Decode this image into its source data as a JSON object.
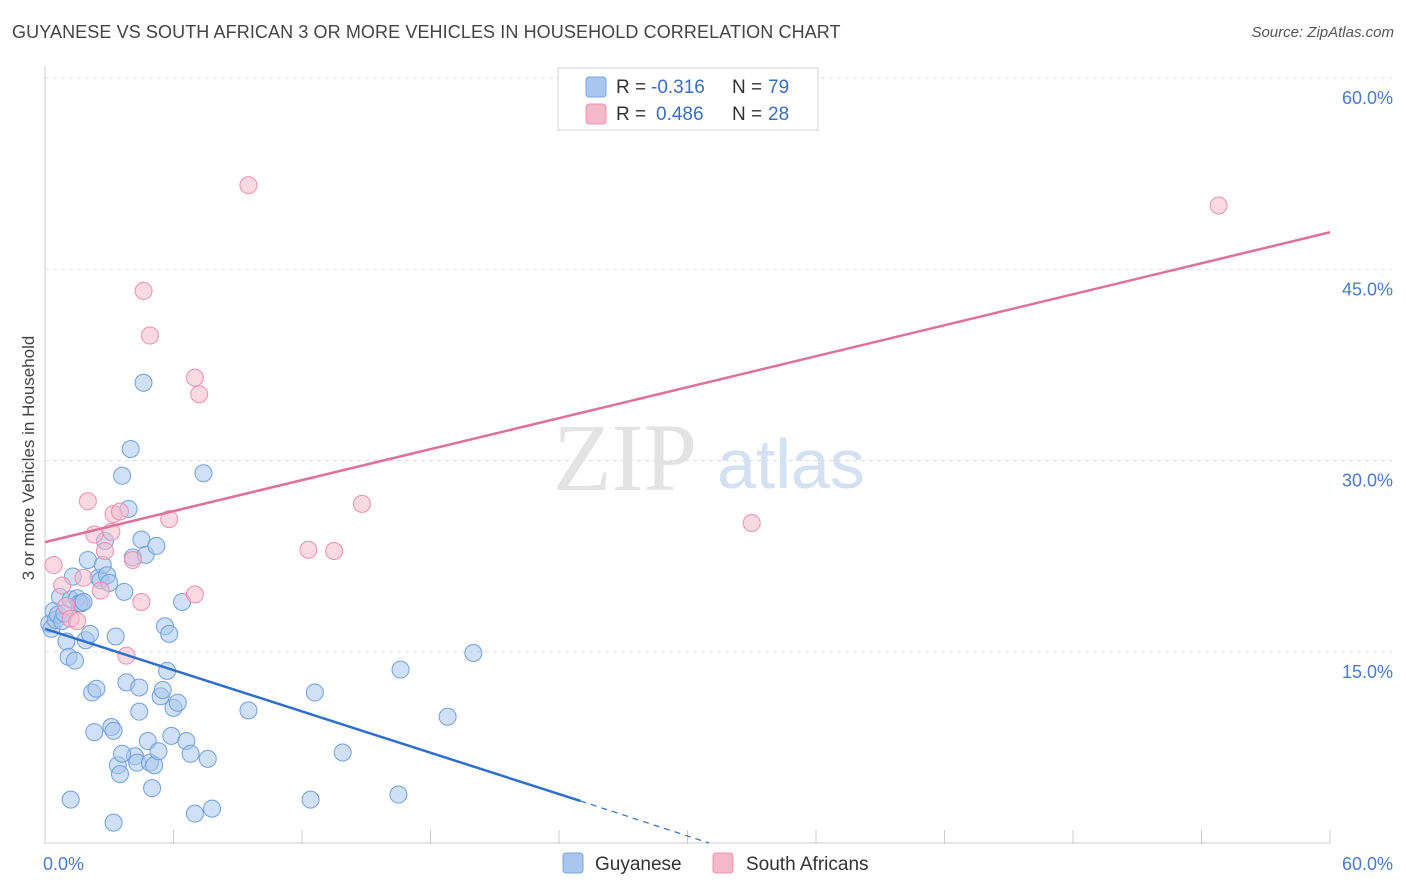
{
  "header": {
    "title": "GUYANESE VS SOUTH AFRICAN 3 OR MORE VEHICLES IN HOUSEHOLD CORRELATION CHART",
    "source": "Source: ZipAtlas.com"
  },
  "watermark": {
    "zip": "ZIP",
    "atlas": "atlas"
  },
  "legend": {
    "rows": [
      {
        "r_label": "R =",
        "r_value": "-0.316",
        "n_label": "N =",
        "n_value": "79",
        "color": "#a9c6ee"
      },
      {
        "r_label": "R =",
        "r_value": "0.486",
        "n_label": "N =",
        "n_value": "28",
        "color": "#f6b9cc"
      }
    ]
  },
  "bottom_legend": [
    {
      "label": "Guyanese",
      "color": "#a9c6ee"
    },
    {
      "label": "South Africans",
      "color": "#f6b9cc"
    }
  ],
  "chart_data": {
    "type": "scatter",
    "title": "GUYANESE VS SOUTH AFRICAN 3 OR MORE VEHICLES IN HOUSEHOLD CORRELATION CHART",
    "xlabel": "",
    "ylabel": "3 or more Vehicles in Household",
    "xlim": [
      0,
      60
    ],
    "ylim": [
      0,
      60
    ],
    "x_tick_labels": [
      "0.0%",
      "60.0%"
    ],
    "y_ticks": [
      15,
      30,
      45,
      60
    ],
    "y_tick_labels": [
      "15.0%",
      "30.0%",
      "45.0%",
      "60.0%"
    ],
    "grid": true,
    "legend_position": "top-center",
    "series": [
      {
        "name": "Guyanese",
        "color": "#6fa0e0",
        "fill": "#a9c6ee",
        "points": [
          [
            0.2,
            17.2
          ],
          [
            0.3,
            16.8
          ],
          [
            0.4,
            18.2
          ],
          [
            0.5,
            17.5
          ],
          [
            0.6,
            17.9
          ],
          [
            0.7,
            19.3
          ],
          [
            0.8,
            17.4
          ],
          [
            0.9,
            18.0
          ],
          [
            1.0,
            15.8
          ],
          [
            1.1,
            14.6
          ],
          [
            1.2,
            19.1
          ],
          [
            1.3,
            20.9
          ],
          [
            1.4,
            14.3
          ],
          [
            1.5,
            19.2
          ],
          [
            1.6,
            18.8
          ],
          [
            1.7,
            18.8
          ],
          [
            1.8,
            18.9
          ],
          [
            1.9,
            15.9
          ],
          [
            2.0,
            22.2
          ],
          [
            2.1,
            16.4
          ],
          [
            2.2,
            11.8
          ],
          [
            2.3,
            8.7
          ],
          [
            2.4,
            12.1
          ],
          [
            2.5,
            20.8
          ],
          [
            2.6,
            20.6
          ],
          [
            2.7,
            21.8
          ],
          [
            2.8,
            23.7
          ],
          [
            2.9,
            21.0
          ],
          [
            3.0,
            20.4
          ],
          [
            3.1,
            9.1
          ],
          [
            3.2,
            8.8
          ],
          [
            3.3,
            16.2
          ],
          [
            3.4,
            6.1
          ],
          [
            3.5,
            5.4
          ],
          [
            3.6,
            28.8
          ],
          [
            3.7,
            19.7
          ],
          [
            3.8,
            12.6
          ],
          [
            3.9,
            26.2
          ],
          [
            4.0,
            30.9
          ],
          [
            4.1,
            22.4
          ],
          [
            4.2,
            6.8
          ],
          [
            4.3,
            6.3
          ],
          [
            4.4,
            10.3
          ],
          [
            4.5,
            23.8
          ],
          [
            4.6,
            36.1
          ],
          [
            4.7,
            22.6
          ],
          [
            4.8,
            8.0
          ],
          [
            4.9,
            6.3
          ],
          [
            5.0,
            4.3
          ],
          [
            5.1,
            6.1
          ],
          [
            5.2,
            23.3
          ],
          [
            5.3,
            7.2
          ],
          [
            5.4,
            11.5
          ],
          [
            5.5,
            12.0
          ],
          [
            5.6,
            17.0
          ],
          [
            5.7,
            13.5
          ],
          [
            5.8,
            16.4
          ],
          [
            5.9,
            8.4
          ],
          [
            6.0,
            10.6
          ],
          [
            6.2,
            11.0
          ],
          [
            6.4,
            18.9
          ],
          [
            6.6,
            8.0
          ],
          [
            6.8,
            7.0
          ],
          [
            7.0,
            2.3
          ],
          [
            7.4,
            29.0
          ],
          [
            7.6,
            6.6
          ],
          [
            7.8,
            2.7
          ],
          [
            9.5,
            10.4
          ],
          [
            12.4,
            3.4
          ],
          [
            12.6,
            11.8
          ],
          [
            13.9,
            7.1
          ],
          [
            16.5,
            3.8
          ],
          [
            16.6,
            13.6
          ],
          [
            18.8,
            9.9
          ],
          [
            20.0,
            14.9
          ],
          [
            1.2,
            3.4
          ],
          [
            3.2,
            1.6
          ],
          [
            3.6,
            7.0
          ],
          [
            4.4,
            12.2
          ]
        ]
      },
      {
        "name": "South Africans",
        "color": "#ef8fae",
        "fill": "#f6b9cc",
        "points": [
          [
            0.4,
            21.8
          ],
          [
            0.8,
            20.2
          ],
          [
            1.0,
            18.6
          ],
          [
            1.2,
            17.6
          ],
          [
            1.5,
            17.4
          ],
          [
            1.8,
            20.8
          ],
          [
            2.0,
            26.8
          ],
          [
            2.3,
            24.2
          ],
          [
            2.6,
            19.8
          ],
          [
            2.8,
            22.9
          ],
          [
            3.1,
            24.4
          ],
          [
            3.2,
            25.8
          ],
          [
            3.5,
            26.0
          ],
          [
            3.8,
            14.7
          ],
          [
            4.1,
            22.2
          ],
          [
            4.5,
            18.9
          ],
          [
            4.6,
            43.3
          ],
          [
            4.9,
            39.8
          ],
          [
            5.8,
            25.4
          ],
          [
            7.0,
            36.5
          ],
          [
            7.2,
            35.2
          ],
          [
            7.0,
            19.5
          ],
          [
            9.5,
            51.6
          ],
          [
            12.3,
            23.0
          ],
          [
            13.5,
            22.9
          ],
          [
            14.8,
            26.6
          ],
          [
            33.0,
            25.1
          ],
          [
            54.8,
            50.0
          ]
        ]
      }
    ],
    "trend_lines": [
      {
        "series": "Guyanese",
        "solid_from": [
          0,
          16.8
        ],
        "solid_to": [
          25,
          3.3
        ],
        "dashed_to": [
          31,
          0
        ],
        "color": "#2e6fcc"
      },
      {
        "series": "South Africans",
        "from": [
          0,
          23.6
        ],
        "to": [
          60,
          47.9
        ],
        "color": "#e0709a"
      }
    ]
  }
}
